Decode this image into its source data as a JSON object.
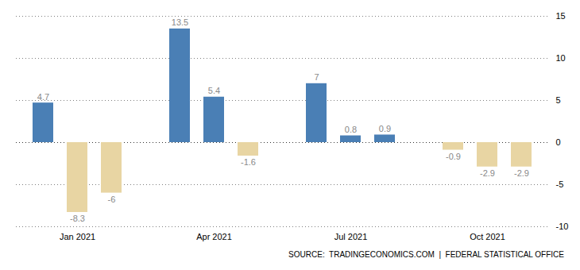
{
  "chart_data": {
    "type": "bar",
    "categories": [
      null,
      "Jan 2021",
      null,
      null,
      "Apr 2021",
      null,
      null,
      "Jul 2021",
      null,
      null,
      "Oct 2021",
      null
    ],
    "values": [
      4.7,
      -8.3,
      -6.0,
      13.5,
      5.4,
      -1.6,
      7.0,
      0.8,
      0.9,
      -0.9,
      -2.9,
      -2.9
    ],
    "colors": [
      "#4a7fb5",
      "#e8d5a3",
      "#e8d5a3",
      "#4a7fb5",
      "#4a7fb5",
      "#e8d5a3",
      "#4a7fb5",
      "#4a7fb5",
      "#4a7fb5",
      "#e8d5a3",
      "#e8d5a3",
      "#e8d5a3"
    ],
    "ylim": [
      -10,
      15
    ],
    "yticks": [
      -10,
      -5,
      0,
      5,
      10,
      15
    ],
    "grid": true,
    "data_labels": true,
    "annotations": [
      "SOURCE:  TRADINGECONOMICS.COM  |  FEDERAL STATISTICAL OFFICE"
    ]
  }
}
